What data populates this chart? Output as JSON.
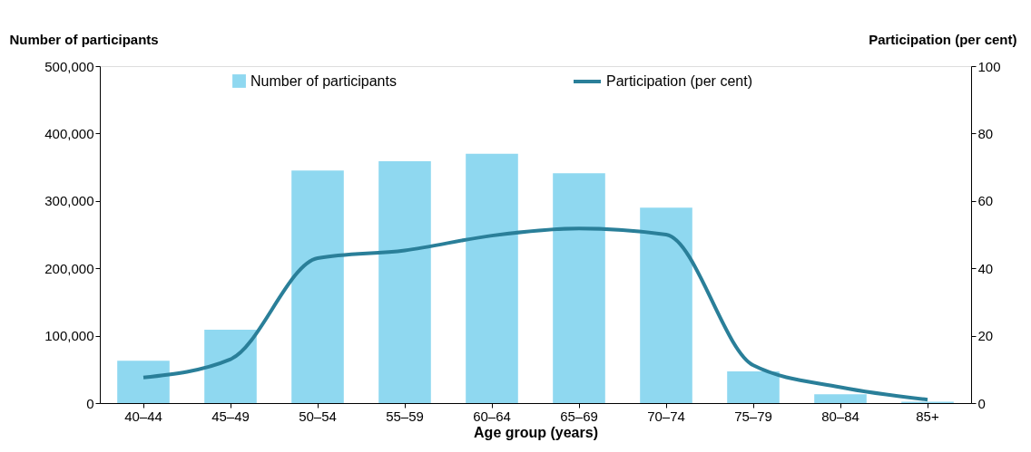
{
  "chart_data": {
    "type": "bar",
    "xlabel": "Age group (years)",
    "ylabel": "Number of participants",
    "y2label": "Participation (per cent)",
    "categories": [
      "40–44",
      "45–49",
      "50–54",
      "55–59",
      "60–64",
      "65–69",
      "70–74",
      "75–79",
      "80–84",
      "85+"
    ],
    "series": [
      {
        "name": "Number of participants",
        "color": "#8fd8f0",
        "values": [
          63000,
          109000,
          345000,
          359000,
          370000,
          341000,
          290000,
          47000,
          13000,
          2000
        ]
      },
      {
        "name": "Participation (per cent)",
        "type": "line",
        "axis": "y2",
        "color": "#2a7f99",
        "values": [
          7.6,
          13,
          43,
          45.3,
          49.7,
          51.8,
          50,
          11.2,
          4.7,
          1
        ]
      }
    ],
    "ylim": [
      0,
      500000
    ],
    "yticks": [
      0,
      {
        "value": 100000,
        "label": "100,000"
      },
      {
        "value": 200000,
        "label": "200,000"
      },
      {
        "value": 300000,
        "label": "300,000"
      },
      {
        "value": 400000,
        "label": "400,000"
      },
      {
        "value": 500000,
        "label": "500,000"
      }
    ],
    "y2lim": [
      0,
      100
    ],
    "y2ticks": [
      0,
      20,
      40,
      60,
      80,
      100
    ],
    "legend": "top",
    "grid": false,
    "marker": "none"
  }
}
